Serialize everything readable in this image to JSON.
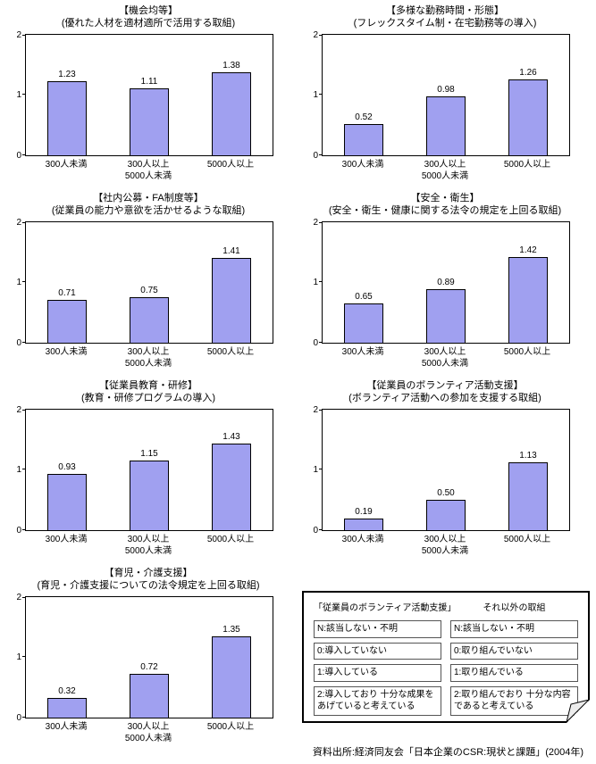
{
  "page": {
    "source_note": "資料出所:経済同友会「日本企業のCSR:現状と課題」(2004年)"
  },
  "axis": {
    "ymin": 0,
    "ymax": 2,
    "y_ticks": [
      0,
      1,
      2
    ]
  },
  "colors": {
    "bar_fill": "#a0a0f0",
    "bar_border": "#000000"
  },
  "chart_data": [
    {
      "type": "bar",
      "title": "【機会均等】",
      "subtitle": "(優れた人材を適材適所で活用する取組)",
      "categories": [
        "300人未満",
        "300人以上\n5000人未満",
        "5000人以上"
      ],
      "values": [
        1.23,
        1.11,
        1.38
      ],
      "ylim": [
        0,
        2
      ]
    },
    {
      "type": "bar",
      "title": "【多様な勤務時間・形態】",
      "subtitle": "(フレックスタイム制・在宅勤務等の導入)",
      "categories": [
        "300人未満",
        "300人以上\n5000人未満",
        "5000人以上"
      ],
      "values": [
        0.52,
        0.98,
        1.26
      ],
      "ylim": [
        0,
        2
      ]
    },
    {
      "type": "bar",
      "title": "【社内公募・FA制度等】",
      "subtitle": "(従業員の能力や意欲を活かせるような取組)",
      "categories": [
        "300人未満",
        "300人以上\n5000人未満",
        "5000人以上"
      ],
      "values": [
        0.71,
        0.75,
        1.41
      ],
      "ylim": [
        0,
        2
      ]
    },
    {
      "type": "bar",
      "title": "【安全・衛生】",
      "subtitle": "(安全・衛生・健康に関する法令の規定を上回る取組)",
      "categories": [
        "300人未満",
        "300人以上\n5000人未満",
        "5000人以上"
      ],
      "values": [
        0.65,
        0.89,
        1.42
      ],
      "ylim": [
        0,
        2
      ]
    },
    {
      "type": "bar",
      "title": "【従業員教育・研修】",
      "subtitle": "(教育・研修プログラムの導入)",
      "categories": [
        "300人未満",
        "300人以上\n5000人未満",
        "5000人以上"
      ],
      "values": [
        0.93,
        1.15,
        1.43
      ],
      "ylim": [
        0,
        2
      ]
    },
    {
      "type": "bar",
      "title": "【従業員のボランティア活動支援】",
      "subtitle": "(ボランティア活動への参加を支援する取組)",
      "categories": [
        "300人未満",
        "300人以上\n5000人未満",
        "5000人以上"
      ],
      "values": [
        0.19,
        0.5,
        1.13
      ],
      "ylim": [
        0,
        2
      ]
    },
    {
      "type": "bar",
      "title": "【育児・介護支援】",
      "subtitle": "(育児・介護支援についての法令規定を上回る取組)",
      "categories": [
        "300人未満",
        "300人以上\n5000人未満",
        "5000人以上"
      ],
      "values": [
        0.32,
        0.72,
        1.35
      ],
      "ylim": [
        0,
        2
      ]
    }
  ],
  "legend": {
    "columns": [
      {
        "header": "「従業員のボランティア活動支援」",
        "items": [
          "N:該当しない・不明",
          "0:導入していない",
          "1:導入している",
          "2:導入しており 十分な成果を\nあげていると考えている"
        ]
      },
      {
        "header": "それ以外の取組",
        "items": [
          "N:該当しない・不明",
          "0:取り組んでいない",
          "1:取り組んでいる",
          "2:取り組んでおり 十分な内容\nであると考えている"
        ]
      }
    ]
  }
}
